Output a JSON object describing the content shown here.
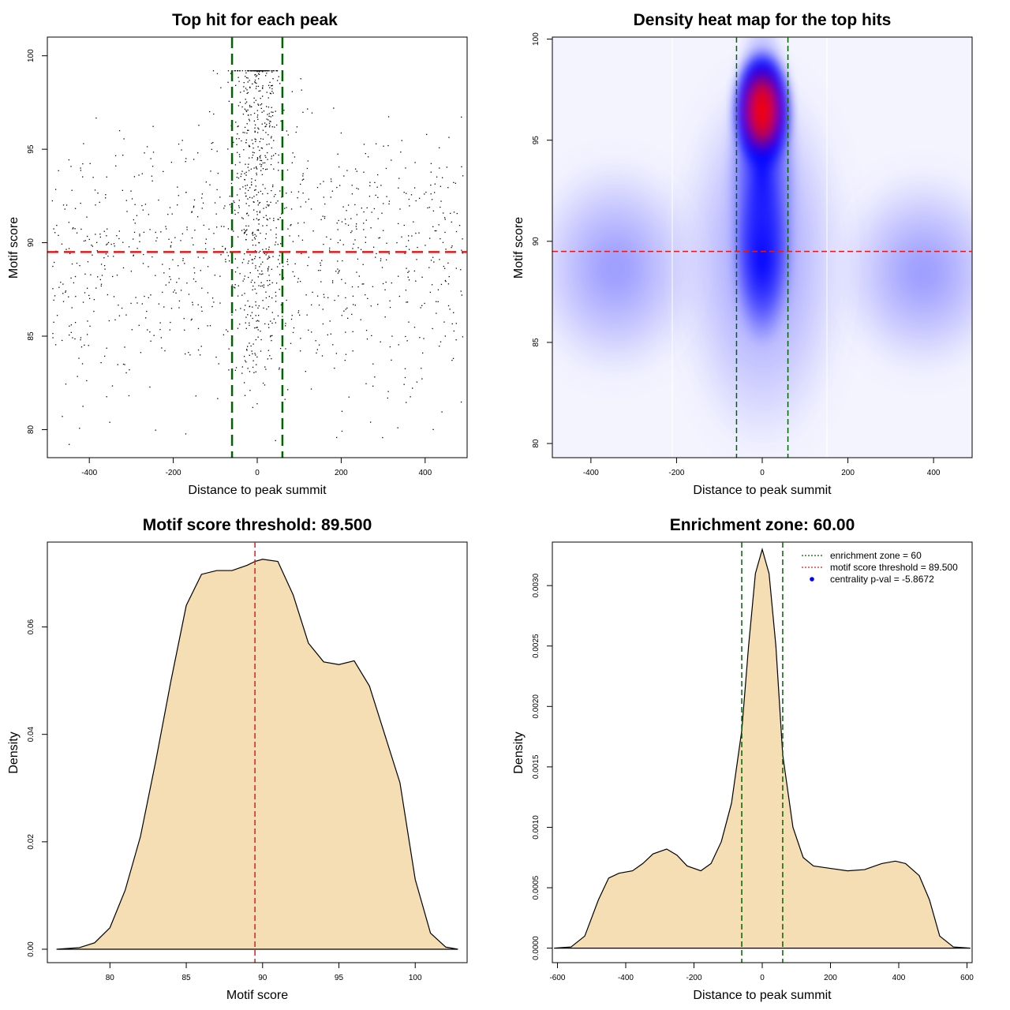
{
  "colors": {
    "threshold_red": "#e31a1c",
    "zone_green": "#006400",
    "fill_wheat": "#f5deb3",
    "heat_low": "#ffffff",
    "heat_mid": "#0000ff",
    "heat_high": "#ff0000",
    "point": "#000000",
    "legend_point": "#0000ff"
  },
  "chart_data": [
    {
      "id": "scatter",
      "type": "scatter",
      "title": "Top hit for each peak",
      "xlabel": "Distance to peak summit",
      "ylabel": "Motif score",
      "xlim": [
        -500,
        500
      ],
      "ylim": [
        78.5,
        101
      ],
      "xticks": [
        -400,
        -200,
        0,
        200,
        400
      ],
      "yticks": [
        80,
        85,
        90,
        95,
        100
      ],
      "n_points": 1500,
      "background_x_range": [
        -490,
        490
      ],
      "background_y_range": [
        79,
        100
      ],
      "central_cluster_x_sd": 30,
      "central_cluster_y_range": [
        82,
        99.2
      ],
      "threshold_y": 89.5,
      "zone_x": [
        -60,
        60
      ]
    },
    {
      "id": "heatmap",
      "type": "heatmap",
      "title": "Density heat map for the top hits",
      "xlabel": "Distance to peak summit",
      "ylabel": "Motif score",
      "xlim": [
        -490,
        490
      ],
      "ylim": [
        79.3,
        100.1
      ],
      "xticks": [
        -400,
        -200,
        0,
        200,
        400
      ],
      "yticks": [
        80,
        85,
        90,
        95,
        100
      ],
      "threshold_y": 89.5,
      "zone_x": [
        -60,
        60
      ],
      "hotspots": [
        {
          "x": 0,
          "y": 96,
          "weight": 1.0
        },
        {
          "x": 0,
          "y": 91,
          "weight": 0.7
        }
      ]
    },
    {
      "id": "score_density",
      "type": "area",
      "title": "Motif score threshold: 89.500",
      "xlabel": "Motif score",
      "ylabel": "Density",
      "xlim": [
        75.9,
        103.4
      ],
      "ylim": [
        -0.0025,
        0.0758
      ],
      "xticks": [
        80,
        85,
        90,
        95,
        100
      ],
      "yticks": [
        0.0,
        0.02,
        0.04,
        0.06
      ],
      "ytick_labels": [
        "0.00",
        "0.02",
        "0.04",
        "0.06"
      ],
      "x": [
        76.5,
        78,
        79,
        80,
        81,
        82,
        83,
        84,
        85,
        86,
        87,
        88,
        88.5,
        89,
        89.5,
        90,
        91,
        92,
        93,
        94,
        95,
        96,
        97,
        98,
        99,
        99.5,
        100,
        101,
        102,
        102.8
      ],
      "y": [
        0.0,
        0.0003,
        0.0012,
        0.004,
        0.011,
        0.021,
        0.035,
        0.05,
        0.064,
        0.0698,
        0.0705,
        0.0705,
        0.071,
        0.0715,
        0.0722,
        0.0726,
        0.0722,
        0.066,
        0.057,
        0.0535,
        0.053,
        0.0537,
        0.049,
        0.04,
        0.031,
        0.022,
        0.013,
        0.003,
        0.0004,
        0.0
      ],
      "threshold_x": 89.5
    },
    {
      "id": "distance_density",
      "type": "area",
      "title": "Enrichment zone: 60.00",
      "xlabel": "Distance to peak summit",
      "ylabel": "Density",
      "xlim": [
        -615,
        615
      ],
      "ylim": [
        -0.00012,
        0.00336
      ],
      "xticks": [
        -600,
        -400,
        -200,
        0,
        200,
        400,
        600
      ],
      "yticks": [
        0.0,
        0.0005,
        0.001,
        0.0015,
        0.002,
        0.0025,
        0.003
      ],
      "ytick_labels": [
        "0.0000",
        "0.0005",
        "0.0010",
        "0.0015",
        "0.0020",
        "0.0025",
        "0.0030"
      ],
      "x": [
        -610,
        -560,
        -520,
        -480,
        -450,
        -420,
        -380,
        -350,
        -320,
        -280,
        -250,
        -220,
        -180,
        -150,
        -120,
        -90,
        -60,
        -40,
        -20,
        0,
        20,
        40,
        60,
        90,
        120,
        150,
        200,
        250,
        300,
        350,
        390,
        420,
        460,
        490,
        520,
        560,
        610
      ],
      "y": [
        0.0,
        1e-05,
        0.0001,
        0.0004,
        0.00058,
        0.00062,
        0.00064,
        0.0007,
        0.00078,
        0.00082,
        0.00077,
        0.00068,
        0.00064,
        0.0007,
        0.00088,
        0.0012,
        0.0018,
        0.0025,
        0.0031,
        0.0033,
        0.0031,
        0.0025,
        0.0016,
        0.001,
        0.00075,
        0.00068,
        0.00066,
        0.00064,
        0.00065,
        0.0007,
        0.00072,
        0.0007,
        0.0006,
        0.0004,
        0.0001,
        1e-05,
        0.0
      ],
      "zone_x": [
        -60,
        60
      ],
      "legend": [
        {
          "label": "enrichment zone = 60",
          "style": "dotted-green"
        },
        {
          "label": "motif score threshold = 89.500",
          "style": "dotted-red"
        },
        {
          "label": "centrality p-val = -5.8672",
          "style": "blue-point"
        }
      ]
    }
  ]
}
